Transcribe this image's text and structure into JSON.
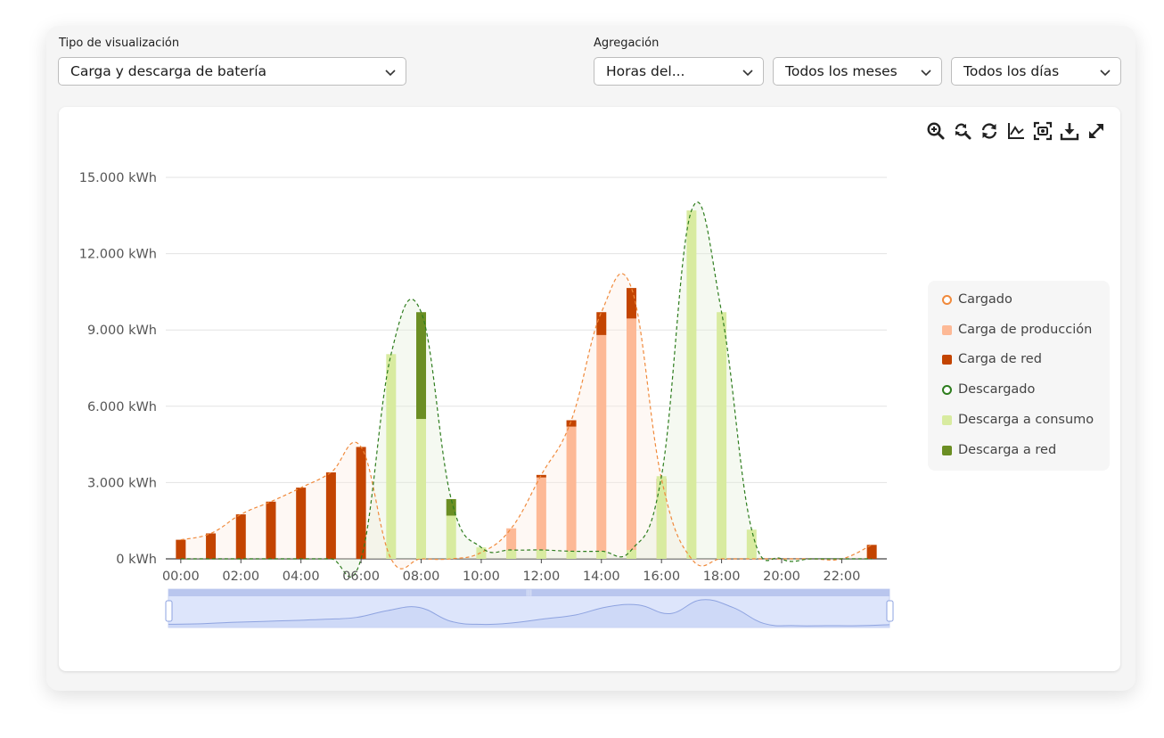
{
  "controls": {
    "view_label": "Tipo de visualización",
    "view_value": "Carga y descarga de batería",
    "agg_label": "Agregación",
    "agg_hours": "Horas del...",
    "agg_months": "Todos los meses",
    "agg_days": "Todos los días"
  },
  "toolbar": [
    "zoom-in-icon",
    "zoom-reset-icon",
    "refresh-icon",
    "chart-type-icon",
    "screenshot-icon",
    "download-icon",
    "fullscreen-icon"
  ],
  "colors": {
    "cargado_line": "#f08a3c",
    "carga_produccion": "#fdb996",
    "carga_red": "#c34401",
    "descargado_line": "#2e7d1e",
    "descarga_consumo": "#d8eba0",
    "descarga_red": "#6b8e23",
    "slider_fill": "#dde5fb",
    "slider_line": "#8ea3e0"
  },
  "legend": [
    {
      "label": "Cargado",
      "kind": "ring",
      "color": "#f08a3c"
    },
    {
      "label": "Carga de producción",
      "kind": "box",
      "color": "#fdb996"
    },
    {
      "label": "Carga de red",
      "kind": "box",
      "color": "#c34401"
    },
    {
      "label": "Descargado",
      "kind": "ring",
      "color": "#2e7d1e"
    },
    {
      "label": "Descarga a consumo",
      "kind": "box",
      "color": "#d8eba0"
    },
    {
      "label": "Descarga a red",
      "kind": "box",
      "color": "#6b8e23"
    }
  ],
  "chart_data": {
    "type": "bar",
    "title": "",
    "xlabel": "",
    "ylabel": "",
    "ylim": [
      0,
      15000
    ],
    "y_ticks": [
      "0 kWh",
      "3.000 kWh",
      "6.000 kWh",
      "9.000 kWh",
      "12.000 kWh",
      "15.000 kWh"
    ],
    "x_ticks": [
      "00:00",
      "02:00",
      "04:00",
      "06:00",
      "08:00",
      "10:00",
      "12:00",
      "14:00",
      "16:00",
      "18:00",
      "20:00",
      "22:00"
    ],
    "categories": [
      "00",
      "01",
      "02",
      "03",
      "04",
      "05",
      "06",
      "07",
      "08",
      "09",
      "10",
      "11",
      "12",
      "13",
      "14",
      "15",
      "16",
      "17",
      "18",
      "19",
      "20",
      "21",
      "22",
      "23"
    ],
    "grid": true,
    "legend_position": "right",
    "stacked": true,
    "series": [
      {
        "name": "Carga de producción",
        "type": "bar",
        "stack": "charge",
        "values": [
          0,
          0,
          0,
          0,
          0,
          0,
          0,
          0,
          0,
          0,
          250,
          1200,
          3200,
          5200,
          8800,
          9450,
          2450,
          0,
          0,
          0,
          0,
          0,
          0,
          0
        ]
      },
      {
        "name": "Carga de red",
        "type": "bar",
        "stack": "charge",
        "values": [
          750,
          1000,
          1750,
          2250,
          2800,
          3400,
          4400,
          0,
          0,
          0,
          0,
          0,
          100,
          250,
          900,
          1200,
          700,
          0,
          0,
          0,
          0,
          0,
          0,
          550
        ]
      },
      {
        "name": "Descarga a consumo",
        "type": "bar",
        "stack": "discharge",
        "values": [
          0,
          0,
          0,
          0,
          0,
          0,
          0,
          8050,
          5500,
          1700,
          450,
          350,
          350,
          300,
          300,
          350,
          3250,
          13700,
          9700,
          1150,
          0,
          0,
          0,
          0
        ]
      },
      {
        "name": "Descarga a red",
        "type": "bar",
        "stack": "discharge",
        "values": [
          0,
          0,
          0,
          0,
          0,
          0,
          0,
          0,
          4200,
          650,
          0,
          0,
          0,
          0,
          0,
          0,
          0,
          0,
          0,
          0,
          0,
          0,
          0,
          0
        ]
      },
      {
        "name": "Cargado",
        "type": "line",
        "values": [
          750,
          1000,
          1750,
          2250,
          2800,
          3400,
          4400,
          0,
          0,
          0,
          250,
          1200,
          3300,
          5450,
          9700,
          10650,
          3150,
          0,
          0,
          0,
          0,
          0,
          0,
          550
        ]
      },
      {
        "name": "Descargado",
        "type": "line",
        "values": [
          0,
          0,
          0,
          0,
          0,
          0,
          0,
          8050,
          9700,
          2350,
          450,
          350,
          350,
          300,
          300,
          350,
          3250,
          13700,
          9700,
          1150,
          0,
          0,
          0,
          0
        ]
      }
    ]
  }
}
